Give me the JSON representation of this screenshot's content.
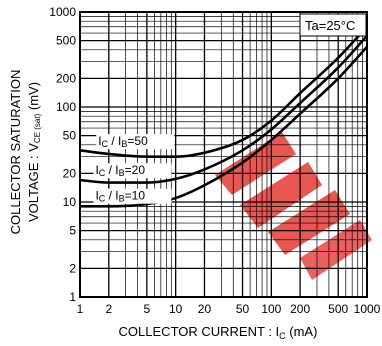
{
  "chart_data": {
    "type": "line",
    "title": "",
    "xlabel": "COLLECTOR CURRENT : I",
    "xlabel_sub": "C",
    "xlabel_unit": " (mA)",
    "ylabel_line1": "COLLECTOR SATURATION",
    "ylabel_line2": "VOLTAGE : V",
    "ylabel_sub": "CE (sat)",
    "ylabel_unit": " (mV)",
    "x_scale": "log",
    "y_scale": "log",
    "xlim": [
      1,
      1000
    ],
    "ylim": [
      1,
      1000
    ],
    "grid": true,
    "condition": "Ta=25°C",
    "x_ticks": [
      "1",
      "2",
      "5",
      "10",
      "20",
      "50",
      "100",
      "200",
      "500",
      "1000"
    ],
    "x_tick_values": [
      1,
      2,
      5,
      10,
      20,
      50,
      100,
      200,
      500,
      1000
    ],
    "y_ticks": [
      "1",
      "2",
      "5",
      "10",
      "20",
      "50",
      "100",
      "200",
      "500",
      "1000"
    ],
    "y_tick_values": [
      1,
      2,
      5,
      10,
      20,
      50,
      100,
      200,
      500,
      1000
    ],
    "series": [
      {
        "name": "Ic / IB=50",
        "label": {
          "main": "I",
          "sub1": "C",
          "mid": " / I",
          "sub2": "B",
          "tail": "=50"
        },
        "points": [
          [
            1,
            35
          ],
          [
            2,
            32
          ],
          [
            5,
            30
          ],
          [
            10,
            30
          ],
          [
            20,
            33
          ],
          [
            50,
            45
          ],
          [
            100,
            72
          ],
          [
            200,
            140
          ],
          [
            500,
            330
          ],
          [
            1000,
            700
          ]
        ]
      },
      {
        "name": "Ic / IB=20",
        "label": {
          "main": "I",
          "sub1": "C",
          "mid": " / I",
          "sub2": "B",
          "tail": "=20"
        },
        "points": [
          [
            1,
            17
          ],
          [
            2,
            16
          ],
          [
            5,
            16
          ],
          [
            10,
            17.5
          ],
          [
            20,
            22
          ],
          [
            50,
            35
          ],
          [
            100,
            58
          ],
          [
            200,
            110
          ],
          [
            500,
            260
          ],
          [
            1000,
            560
          ]
        ]
      },
      {
        "name": "Ic / IB=10",
        "label": {
          "main": "I",
          "sub1": "C",
          "mid": " / I",
          "sub2": "B",
          "tail": "=10"
        },
        "points": [
          [
            1,
            9
          ],
          [
            2,
            9
          ],
          [
            5,
            9.5
          ],
          [
            10,
            11
          ],
          [
            20,
            15
          ],
          [
            50,
            26
          ],
          [
            100,
            45
          ],
          [
            200,
            85
          ],
          [
            500,
            200
          ],
          [
            1000,
            430
          ]
        ]
      }
    ]
  }
}
